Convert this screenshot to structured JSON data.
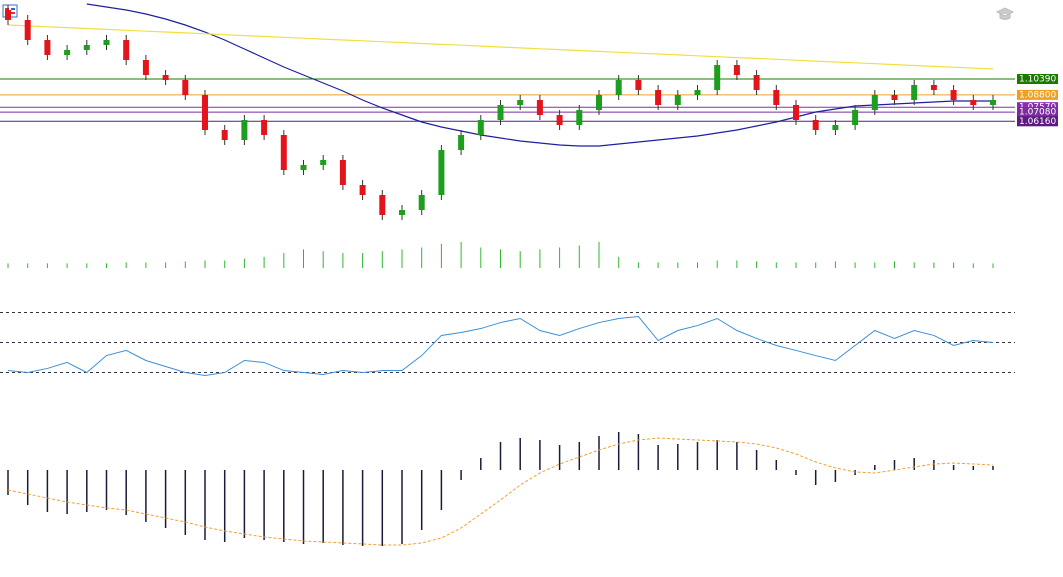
{
  "chart_data": [
    {
      "type": "candlestick",
      "ylim": [
        0.9429,
        1.1829
      ],
      "up_color": "#1e9e1e",
      "down_color": "#e3141c",
      "open": [
        1.1729,
        1.1629,
        1.1429,
        1.1279,
        1.1329,
        1.1379,
        1.1429,
        1.1229,
        1.1079,
        1.1029,
        1.0879,
        1.0529,
        1.0429,
        1.0629,
        1.0479,
        1.0129,
        1.0179,
        1.0229,
        0.9979,
        0.9879,
        0.9679,
        0.9729,
        0.9879,
        1.0329,
        1.0479,
        1.0629,
        1.0779,
        1.0829,
        1.0679,
        1.0579,
        1.0729,
        1.0879,
        1.1029,
        1.0929,
        1.0779,
        1.0879,
        1.0929,
        1.1179,
        1.1079,
        1.0929,
        1.0779,
        1.0629,
        1.0529,
        1.0579,
        1.0729,
        1.0879,
        1.0829,
        1.0979,
        1.0929,
        1.0829,
        1.0779
      ],
      "high": [
        1.1779,
        1.1679,
        1.1479,
        1.1379,
        1.1429,
        1.1479,
        1.1479,
        1.1279,
        1.1129,
        1.1079,
        1.0929,
        1.0579,
        1.0679,
        1.0679,
        1.0529,
        1.0229,
        1.0279,
        1.0279,
        1.0029,
        0.9929,
        0.9779,
        0.9929,
        1.0379,
        1.0529,
        1.0679,
        1.0829,
        1.0879,
        1.0879,
        1.0729,
        1.0779,
        1.0929,
        1.1079,
        1.1079,
        1.0979,
        1.0929,
        1.0979,
        1.1229,
        1.1229,
        1.1129,
        1.0979,
        1.0829,
        1.0679,
        1.0629,
        1.0779,
        1.0929,
        1.0929,
        1.1029,
        1.1029,
        1.0979,
        1.0879,
        1.0879
      ],
      "low": [
        1.1579,
        1.1379,
        1.1229,
        1.1229,
        1.1279,
        1.1329,
        1.1179,
        1.1029,
        1.0979,
        1.0829,
        1.0479,
        1.0379,
        1.0379,
        1.0429,
        1.0079,
        1.0079,
        1.0129,
        0.9929,
        0.9829,
        0.9629,
        0.9629,
        0.9679,
        0.9829,
        1.0279,
        1.0429,
        1.0579,
        1.0729,
        1.0629,
        1.0529,
        1.0529,
        1.0679,
        1.0829,
        1.0879,
        1.0729,
        1.0729,
        1.0829,
        1.0879,
        1.1029,
        1.0879,
        1.0729,
        1.0579,
        1.0479,
        1.0479,
        1.0529,
        1.0679,
        1.0779,
        1.0779,
        1.0879,
        1.0779,
        1.0729,
        1.0729
      ],
      "close": [
        1.1629,
        1.1429,
        1.1279,
        1.1329,
        1.1379,
        1.1429,
        1.1229,
        1.1079,
        1.1029,
        1.0879,
        1.0529,
        1.0429,
        1.0629,
        1.0479,
        1.0129,
        1.0179,
        1.0229,
        0.9979,
        0.9879,
        0.9679,
        0.9729,
        0.9879,
        1.0329,
        1.0479,
        1.0629,
        1.0779,
        1.0829,
        1.0679,
        1.0579,
        1.0729,
        1.0879,
        1.1029,
        1.0929,
        1.0779,
        1.0879,
        1.0929,
        1.1179,
        1.1079,
        1.0929,
        1.0779,
        1.0629,
        1.0529,
        1.0579,
        1.0729,
        1.0879,
        1.0829,
        1.0979,
        1.0929,
        1.0829,
        1.0779,
        1.0829
      ],
      "overlays": [
        {
          "color": "#1f1fa0",
          "values": [
            null,
            null,
            null,
            null,
            1.1789,
            1.1759,
            1.1729,
            1.1689,
            1.1639,
            1.1579,
            1.1509,
            1.1429,
            1.1339,
            1.1249,
            1.1159,
            1.1079,
            1.0999,
            1.0919,
            1.0829,
            1.0749,
            1.0679,
            1.0609,
            1.0559,
            1.0519,
            1.0479,
            1.0449,
            1.0419,
            1.0399,
            1.0379,
            1.0369,
            1.0369,
            1.0389,
            1.0409,
            1.0429,
            1.0449,
            1.0469,
            1.0499,
            1.0529,
            1.0569,
            1.0609,
            1.0659,
            1.0709,
            1.0739,
            1.0769,
            1.0779,
            1.0789,
            1.0799,
            1.0809,
            1.0819,
            1.0819,
            1.0819
          ]
        },
        {
          "color": "#f0e040",
          "values": [
            1.1579,
            1.157,
            1.1561,
            1.1553,
            1.1544,
            1.1535,
            1.1526,
            1.1517,
            1.1509,
            1.15,
            1.1491,
            1.1482,
            1.1473,
            1.1465,
            1.1456,
            1.1447,
            1.1438,
            1.1429,
            1.1421,
            1.1412,
            1.1403,
            1.1394,
            1.1385,
            1.1377,
            1.1368,
            1.1359,
            1.135,
            1.1341,
            1.1333,
            1.1324,
            1.1315,
            1.1306,
            1.1297,
            1.1289,
            1.128,
            1.1271,
            1.1262,
            1.1253,
            1.1245,
            1.1236,
            1.1227,
            1.1218,
            1.1209,
            1.1201,
            1.1192,
            1.1183,
            1.1174,
            1.1165,
            1.1157,
            1.1148,
            1.1139
          ]
        }
      ],
      "levels": [
        {
          "value": 1.1039,
          "label": "1.10390",
          "color": "#1a7a00"
        },
        {
          "value": 1.088,
          "label": "1.08800",
          "color": "#f0a020"
        },
        {
          "value": 1.0757,
          "label": "1.07570",
          "color": "#8a2bb0"
        },
        {
          "value": 1.0708,
          "label": "1.07080",
          "color": "#7b2d9e"
        },
        {
          "value": 1.0616,
          "label": "1.06160",
          "color": "#5e1a80"
        }
      ]
    },
    {
      "type": "bar",
      "ylim": [
        0,
        30
      ],
      "color": "#2eb82e",
      "values": [
        5,
        5,
        5,
        5,
        5,
        5,
        6,
        6,
        6,
        7,
        8,
        8,
        10,
        12,
        16,
        20,
        18,
        16,
        16,
        18,
        20,
        22,
        26,
        28,
        22,
        20,
        18,
        20,
        22,
        24,
        28,
        12,
        6,
        6,
        6,
        6,
        8,
        8,
        7,
        6,
        6,
        6,
        7,
        6,
        6,
        7,
        6,
        6,
        6,
        5,
        5
      ]
    },
    {
      "type": "line",
      "ylim": [
        15,
        85
      ],
      "color": "#3a8fd8",
      "levels": [
        70,
        50,
        30
      ],
      "values": [
        31.3,
        30,
        32.7,
        36.7,
        30,
        41.3,
        44.7,
        38,
        34,
        30,
        28,
        30,
        38,
        36.7,
        31.3,
        30,
        28.7,
        31.3,
        30,
        31.3,
        31.3,
        41.3,
        54.7,
        56.7,
        59.3,
        63.3,
        66,
        58,
        54.7,
        59.3,
        63.3,
        66,
        67.3,
        51.3,
        58,
        61.3,
        66,
        58,
        52.7,
        48,
        44.7,
        41.3,
        38,
        48,
        58,
        52.7,
        58,
        54.7,
        48,
        51.3,
        50
      ]
    },
    {
      "type": "macd",
      "ylim": [
        -90,
        55
      ],
      "color": "#1a1a3a",
      "signal_color": "#f0a030",
      "values": [
        -25,
        -35,
        -42,
        -44,
        -42,
        -40,
        -45,
        -52,
        -58,
        -65,
        -70,
        -72,
        -68,
        -70,
        -72,
        -74,
        -73,
        -75,
        -76,
        -76,
        -74,
        -60,
        -40,
        -10,
        12,
        28,
        32,
        30,
        25,
        28,
        34,
        38,
        36,
        25,
        26,
        28,
        30,
        28,
        20,
        10,
        -5,
        -15,
        -12,
        -5,
        5,
        10,
        12,
        10,
        5,
        4,
        4
      ],
      "signal": [
        -20,
        -24,
        -28,
        -32,
        -35,
        -38,
        -40,
        -44,
        -48,
        -52,
        -57,
        -61,
        -64,
        -67,
        -69,
        -71,
        -72,
        -73,
        -74,
        -75,
        -75,
        -73,
        -68,
        -58,
        -44,
        -30,
        -15,
        -3,
        6,
        13,
        20,
        26,
        30,
        32,
        31,
        30,
        29,
        28,
        26,
        22,
        16,
        8,
        2,
        -2,
        -3,
        0,
        3,
        6,
        7,
        6,
        5
      ]
    }
  ]
}
